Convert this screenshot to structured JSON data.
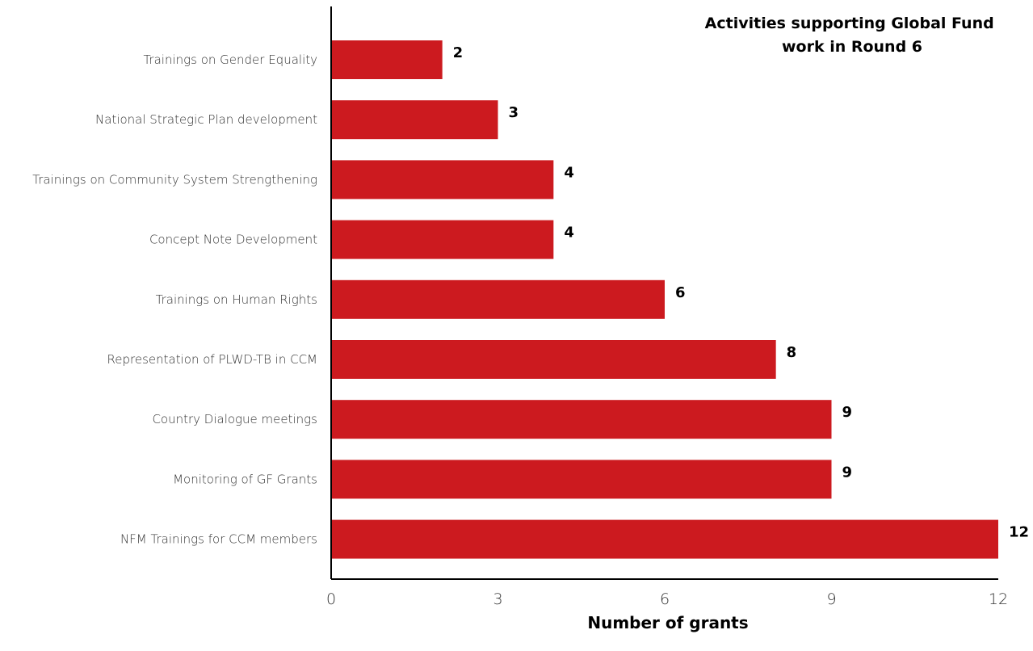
{
  "chart_data": {
    "type": "bar",
    "orientation": "horizontal",
    "title": [
      "Activities supporting Global Fund",
      "work in Round 6"
    ],
    "xlabel": "Number of grants",
    "ylabel": "",
    "xlim": [
      0,
      12
    ],
    "xticks": [
      0,
      3,
      6,
      9,
      12
    ],
    "grid": false,
    "categories": [
      "Trainings on Gender Equality",
      "National Strategic Plan development",
      "Trainings on Community System Strengthening",
      "Concept Note Development",
      "Trainings on Human Rights",
      "Representation of PLWD-TB in CCM",
      "Country Dialogue meetings",
      "Monitoring of GF Grants",
      "NFM Trainings for CCM members"
    ],
    "values": [
      2,
      3,
      4,
      4,
      6,
      8,
      9,
      9,
      12
    ],
    "bar_color": "#cc1a1f",
    "axis_color": "#000000"
  }
}
